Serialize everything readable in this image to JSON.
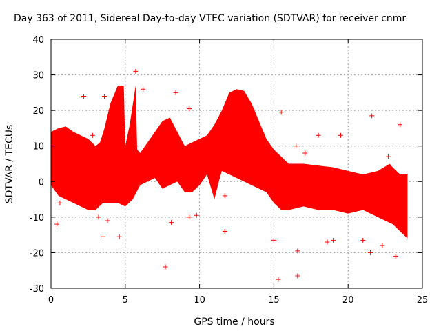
{
  "chart_data": {
    "type": "scatter",
    "title": "Day 363 of 2011, Sidereal Day-to-day VTEC variation (SDTVAR) for receiver cnmr",
    "xlabel": "GPS time / hours",
    "ylabel": "SDTVAR / TECUs",
    "xlim": [
      0,
      25
    ],
    "ylim": [
      -30,
      40
    ],
    "x_ticks": [
      0,
      5,
      10,
      15,
      20,
      25
    ],
    "y_ticks": [
      -30,
      -20,
      -10,
      0,
      10,
      20,
      30,
      40
    ],
    "x_tick_labels": [
      "0",
      "5",
      "10",
      "15",
      "20",
      "25"
    ],
    "y_tick_labels": [
      "-30",
      "-20",
      "-10",
      "0",
      "10",
      "20",
      "30",
      "40"
    ],
    "grid": true,
    "marker": "+",
    "color": "#ff0000",
    "band_upper": [
      [
        0.0,
        14
      ],
      [
        0.5,
        15
      ],
      [
        1.0,
        15.5
      ],
      [
        1.5,
        14
      ],
      [
        2.0,
        13
      ],
      [
        2.5,
        12
      ],
      [
        3.0,
        10
      ],
      [
        3.3,
        11
      ],
      [
        3.6,
        15
      ],
      [
        4.0,
        22
      ],
      [
        4.5,
        27
      ],
      [
        4.9,
        27
      ],
      [
        5.0,
        10
      ],
      [
        5.3,
        16
      ],
      [
        5.7,
        27
      ],
      [
        5.8,
        9
      ],
      [
        6.0,
        8
      ],
      [
        7.0,
        14
      ],
      [
        7.5,
        17
      ],
      [
        8.0,
        18
      ],
      [
        8.5,
        14
      ],
      [
        9.0,
        10
      ],
      [
        9.5,
        11
      ],
      [
        10.0,
        12
      ],
      [
        10.5,
        13
      ],
      [
        11.0,
        16
      ],
      [
        11.5,
        20
      ],
      [
        12.0,
        25
      ],
      [
        12.5,
        26
      ],
      [
        13.0,
        25.5
      ],
      [
        13.5,
        22
      ],
      [
        14.0,
        17
      ],
      [
        14.5,
        12
      ],
      [
        15.0,
        9
      ],
      [
        15.5,
        7
      ],
      [
        16.0,
        5
      ],
      [
        17.0,
        5
      ],
      [
        18.0,
        4.5
      ],
      [
        19.0,
        4
      ],
      [
        20.0,
        3
      ],
      [
        21.0,
        2
      ],
      [
        22.0,
        3
      ],
      [
        22.8,
        5
      ],
      [
        23.0,
        4
      ],
      [
        23.5,
        2
      ],
      [
        24.0,
        2
      ]
    ],
    "band_lower": [
      [
        0.0,
        -1
      ],
      [
        0.5,
        -4
      ],
      [
        1.0,
        -5
      ],
      [
        1.5,
        -6
      ],
      [
        2.0,
        -7
      ],
      [
        2.5,
        -8
      ],
      [
        3.0,
        -8
      ],
      [
        3.5,
        -6
      ],
      [
        4.0,
        -6
      ],
      [
        4.5,
        -6
      ],
      [
        5.0,
        -7
      ],
      [
        5.5,
        -5
      ],
      [
        6.0,
        -1
      ],
      [
        6.5,
        0
      ],
      [
        7.0,
        1
      ],
      [
        7.5,
        -2
      ],
      [
        8.0,
        -1
      ],
      [
        8.5,
        0
      ],
      [
        9.0,
        -3
      ],
      [
        9.5,
        -3
      ],
      [
        10.0,
        -1
      ],
      [
        10.5,
        2
      ],
      [
        11.0,
        -5
      ],
      [
        11.3,
        0
      ],
      [
        11.5,
        3
      ],
      [
        12.0,
        2
      ],
      [
        12.5,
        1
      ],
      [
        13.0,
        0
      ],
      [
        13.5,
        -1
      ],
      [
        14.0,
        -2
      ],
      [
        14.5,
        -3
      ],
      [
        15.0,
        -6
      ],
      [
        15.5,
        -8
      ],
      [
        16.0,
        -8
      ],
      [
        17.0,
        -7
      ],
      [
        18.0,
        -8
      ],
      [
        19.0,
        -8
      ],
      [
        20.0,
        -9
      ],
      [
        21.0,
        -8
      ],
      [
        22.0,
        -10
      ],
      [
        23.0,
        -12
      ],
      [
        23.5,
        -14
      ],
      [
        24.0,
        -16
      ]
    ],
    "outliers": [
      [
        0.4,
        -12
      ],
      [
        0.6,
        -6
      ],
      [
        1.5,
        5
      ],
      [
        2.2,
        24
      ],
      [
        2.8,
        13
      ],
      [
        3.2,
        -10
      ],
      [
        3.5,
        -15.5
      ],
      [
        3.6,
        24
      ],
      [
        3.8,
        -11
      ],
      [
        4.0,
        20
      ],
      [
        4.6,
        -15.5
      ],
      [
        5.7,
        31
      ],
      [
        6.2,
        26
      ],
      [
        7.7,
        -24
      ],
      [
        8.1,
        -11.5
      ],
      [
        8.4,
        25
      ],
      [
        9.3,
        20.5
      ],
      [
        9.3,
        -10
      ],
      [
        9.8,
        -9.5
      ],
      [
        11.5,
        17
      ],
      [
        11.7,
        -14
      ],
      [
        11.7,
        -4
      ],
      [
        15.0,
        -16.5
      ],
      [
        15.3,
        -27.5
      ],
      [
        15.5,
        19.5
      ],
      [
        16.5,
        10
      ],
      [
        16.6,
        -19.5
      ],
      [
        16.6,
        -26.5
      ],
      [
        17.1,
        8
      ],
      [
        18.0,
        13
      ],
      [
        18.6,
        -17
      ],
      [
        19.0,
        -16.5
      ],
      [
        19.5,
        13
      ],
      [
        21.0,
        -16.5
      ],
      [
        21.5,
        -20
      ],
      [
        21.6,
        18.5
      ],
      [
        22.3,
        -18
      ],
      [
        22.7,
        7
      ],
      [
        23.2,
        -21
      ],
      [
        23.5,
        16
      ]
    ]
  }
}
